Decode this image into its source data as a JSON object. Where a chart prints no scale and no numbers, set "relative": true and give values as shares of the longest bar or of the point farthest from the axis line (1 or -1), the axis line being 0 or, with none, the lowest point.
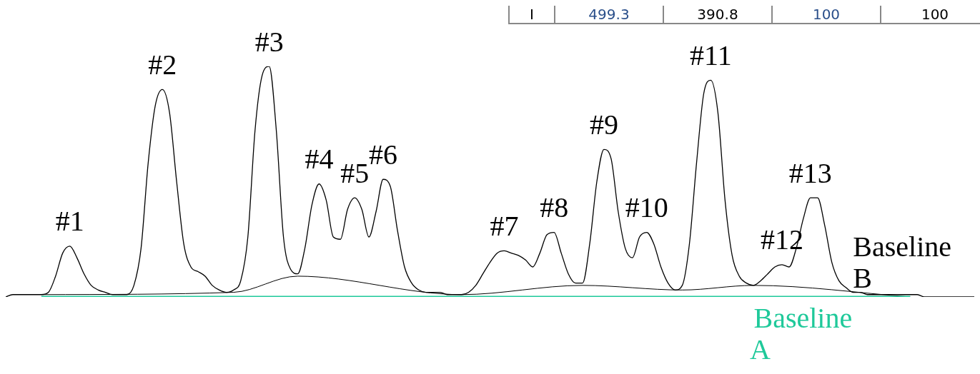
{
  "chart_data": {
    "type": "line",
    "relative": true,
    "legend": false,
    "marker": "none",
    "categories": [
      null,
      null,
      null,
      null,
      null,
      null,
      null,
      null,
      null,
      null,
      null,
      null,
      null,
      null,
      null,
      null,
      null,
      null,
      null,
      null,
      null,
      null,
      null,
      null,
      null,
      null,
      null,
      null,
      null,
      null,
      null,
      null,
      null,
      null,
      null,
      null,
      null,
      null,
      null,
      null,
      null,
      null,
      null,
      null,
      null,
      null,
      null,
      null,
      null,
      null,
      null,
      null,
      null,
      null,
      null,
      null,
      null,
      null,
      null,
      null,
      null,
      null,
      null,
      null,
      null,
      null,
      null,
      null,
      null,
      null,
      null,
      null,
      null,
      null,
      null,
      null,
      null,
      null,
      null,
      null,
      null,
      null,
      null,
      null,
      null,
      null,
      null,
      null,
      null,
      null,
      null,
      null,
      null,
      null,
      null,
      null,
      null,
      null,
      null,
      null,
      null,
      null,
      null,
      null,
      null,
      null,
      null,
      null,
      null,
      null,
      null,
      null,
      null,
      null,
      null,
      null,
      null,
      null,
      null,
      null,
      null,
      null,
      null,
      null,
      null,
      null,
      null,
      null,
      null,
      null,
      null,
      null,
      null,
      null,
      null,
      null,
      null
    ],
    "series": [
      {
        "color": "#000000",
        "values": [
          0,
          0.01,
          0.01,
          0.01,
          0.01,
          0.01,
          0.02,
          0.09,
          0.19,
          0.22,
          0.17,
          0.1,
          0.05,
          0.03,
          0.02,
          0.01,
          0.01,
          0.01,
          0.05,
          0.21,
          0.58,
          0.83,
          0.9,
          0.8,
          0.5,
          0.23,
          0.13,
          0.11,
          0.09,
          0.05,
          0.03,
          0.02,
          0.03,
          0.07,
          0.26,
          0.72,
          0.96,
          1,
          0.72,
          0.26,
          0.12,
          0.1,
          0.21,
          0.4,
          0.49,
          0.42,
          0.26,
          0.25,
          0.38,
          0.43,
          0.38,
          0.26,
          0.37,
          0.51,
          0.48,
          0.29,
          0.13,
          0.06,
          0.03,
          0.02,
          0.02,
          0.02,
          0.01,
          0.01,
          0.01,
          0.02,
          0.05,
          0.1,
          0.15,
          0.19,
          0.2,
          0.19,
          0.18,
          0.16,
          0.13,
          0.19,
          0.27,
          0.28,
          0.19,
          0.1,
          0.06,
          0.06,
          0.23,
          0.5,
          0.64,
          0.6,
          0.37,
          0.21,
          0.17,
          0.26,
          0.28,
          0.23,
          0.13,
          0.06,
          0.03,
          0.05,
          0.23,
          0.58,
          0.88,
          0.94,
          0.8,
          0.42,
          0.18,
          0.09,
          0.06,
          0.05,
          0.07,
          0.1,
          0.13,
          0.14,
          0.13,
          0.21,
          0.34,
          0.43,
          0.43,
          0.31,
          0.15,
          0.07,
          0.04,
          0.02,
          0.02,
          0.01,
          0.01,
          0.01,
          0.01,
          0.01,
          0.01,
          0.01,
          0.01,
          0,
          0,
          0,
          0,
          0,
          0,
          0,
          0
        ],
        "line_style": "solid"
      },
      {
        "name": "Baseline A",
        "color": "#1fc99a",
        "values": [
          null,
          null,
          null,
          null,
          null,
          0,
          null,
          null,
          null,
          null,
          null,
          null,
          null,
          null,
          null,
          null,
          null,
          null,
          null,
          null,
          null,
          null,
          null,
          null,
          null,
          null,
          null,
          null,
          null,
          null,
          null,
          null,
          null,
          null,
          null,
          null,
          null,
          null,
          null,
          null,
          null,
          null,
          null,
          null,
          null,
          null,
          null,
          null,
          null,
          null,
          null,
          null,
          null,
          null,
          null,
          null,
          null,
          null,
          null,
          null,
          null,
          null,
          null,
          null,
          null,
          null,
          null,
          null,
          null,
          null,
          null,
          null,
          null,
          null,
          null,
          null,
          null,
          null,
          null,
          null,
          null,
          null,
          null,
          null,
          null,
          null,
          null,
          null,
          null,
          null,
          null,
          null,
          null,
          null,
          null,
          null,
          null,
          null,
          null,
          null,
          null,
          null,
          null,
          null,
          null,
          null,
          null,
          null,
          null,
          null,
          null,
          null,
          null,
          null,
          null,
          null,
          null,
          null,
          null,
          null,
          null,
          null,
          null,
          null,
          null,
          null,
          null,
          0,
          null,
          null,
          null,
          null,
          null,
          null,
          null,
          null,
          null
        ]
      },
      {
        "name": "Baseline B",
        "color": "#000000",
        "values": [
          null,
          null,
          null,
          null,
          null,
          0.01,
          null,
          null,
          null,
          null,
          null,
          null,
          null,
          null,
          null,
          null,
          null,
          null,
          null,
          null,
          null,
          null,
          null,
          null,
          null,
          null,
          null,
          null,
          null,
          null,
          null,
          null,
          0.02,
          null,
          null,
          null,
          null,
          null,
          null,
          null,
          null,
          0.09,
          null,
          null,
          null,
          null,
          null,
          null,
          null,
          null,
          null,
          null,
          null,
          null,
          null,
          null,
          null,
          null,
          null,
          null,
          null,
          null,
          null,
          null,
          0.01,
          null,
          null,
          null,
          null,
          null,
          null,
          null,
          null,
          null,
          null,
          null,
          null,
          null,
          null,
          null,
          null,
          0.05,
          null,
          null,
          null,
          null,
          null,
          null,
          null,
          null,
          null,
          null,
          null,
          null,
          null,
          0.03,
          null,
          null,
          null,
          null,
          null,
          null,
          null,
          null,
          null,
          0.05,
          null,
          null,
          null,
          null,
          null,
          null,
          null,
          null,
          null,
          null,
          null,
          null,
          null,
          null,
          null,
          null,
          null,
          null,
          null,
          null,
          null,
          0,
          null,
          null,
          null,
          null,
          null,
          null,
          null,
          null,
          null
        ]
      }
    ],
    "annotations": [
      "I",
      "499.3",
      "390.8",
      "100",
      "100",
      {
        "text": "#1",
        "y": 0.22
      },
      {
        "text": "#2",
        "y": 0.9
      },
      {
        "text": "#3",
        "y": 1
      },
      {
        "text": "#4",
        "y": 0.49
      },
      {
        "text": "#5",
        "y": 0.43
      },
      {
        "text": "#6",
        "y": 0.51
      },
      {
        "text": "#7",
        "y": 0.2
      },
      {
        "text": "#8",
        "y": 0.28
      },
      {
        "text": "#9",
        "y": 0.64
      },
      {
        "text": "#10",
        "y": 0.28
      },
      {
        "text": "#11",
        "y": 0.94
      },
      {
        "text": "#12",
        "y": 0.14
      },
      {
        "text": "#13",
        "y": 0.43
      }
    ]
  }
}
